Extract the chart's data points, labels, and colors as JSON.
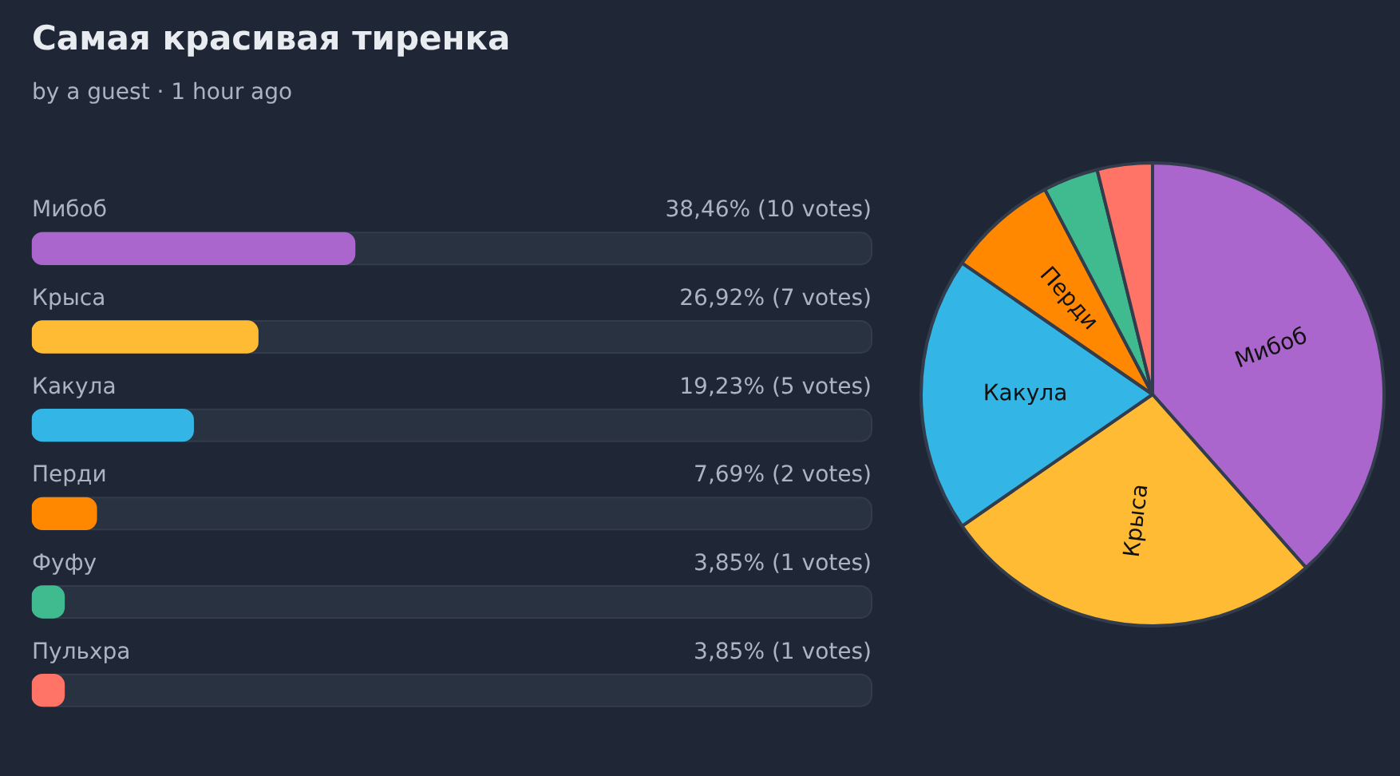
{
  "chart_data": [
    {
      "type": "bar",
      "title": "Самая красивая тиренка",
      "subtitle": "by a guest · 1 hour ago",
      "orientation": "horizontal",
      "categories": [
        "Мибоб",
        "Крыса",
        "Какула",
        "Перди",
        "Фуфу",
        "Пульхра"
      ],
      "values": [
        38.46,
        26.92,
        19.23,
        7.69,
        3.85,
        3.85
      ],
      "colors": [
        "#aa66cc",
        "#ffbb33",
        "#33b5e5",
        "#ff8800",
        "#40bb8f",
        "#ff7466"
      ],
      "value_labels": [
        "38,46% (10 votes)",
        "26,92% (7 votes)",
        "19,23% (5 votes)",
        "7,69% (2 votes)",
        "3,85% (1 votes)",
        "3,85% (1 votes)"
      ],
      "xlim": [
        0,
        100
      ]
    },
    {
      "type": "pie",
      "categories": [
        "Мибоб",
        "Крыса",
        "Какула",
        "Перди",
        null,
        null
      ],
      "values": [
        38.46,
        26.92,
        19.23,
        7.69,
        3.85,
        3.85
      ],
      "colors": [
        "#aa66cc",
        "#ffbb33",
        "#33b5e5",
        "#ff8800",
        "#40bb8f",
        "#ff7466"
      ]
    }
  ]
}
